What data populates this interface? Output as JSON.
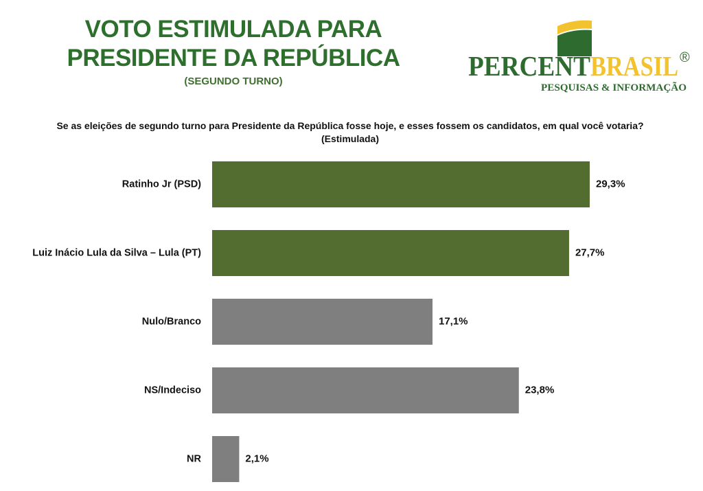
{
  "header": {
    "title_line1": "VOTO ESTIMULADA PARA",
    "title_line2": "PRESIDENTE DA REPÚBLICA",
    "subtitle": "(SEGUNDO TURNO)"
  },
  "logo": {
    "word1": "PERCENT",
    "word2": "BRASIL",
    "registered": "®",
    "tagline": "PESQUISAS & INFORMAÇÃO"
  },
  "colors": {
    "green": "#536c2f",
    "gray": "#7f7f7f",
    "title_green": "#2e6f2e",
    "logo_green": "#2e6b2e",
    "logo_yellow": "#f2c32e"
  },
  "chart_data": {
    "type": "bar",
    "orientation": "horizontal",
    "question": "Se as eleições de segundo turno para Presidente da República fosse hoje, e esses fossem os candidatos, em qual você votaria? (Estimulada)",
    "categories": [
      "Ratinho Jr (PSD)",
      "Luiz Inácio Lula da Silva – Lula (PT)",
      "Nulo/Branco",
      "NS/Indeciso",
      "NR"
    ],
    "values": [
      29.3,
      27.7,
      17.1,
      23.8,
      2.1
    ],
    "value_labels": [
      "29,3%",
      "27,7%",
      "17,1%",
      "23,8%",
      "2,1%"
    ],
    "bar_colors": [
      "#536c2f",
      "#536c2f",
      "#7f7f7f",
      "#7f7f7f",
      "#7f7f7f"
    ],
    "xlim": [
      0,
      30
    ],
    "grid": false,
    "legend": "none"
  }
}
